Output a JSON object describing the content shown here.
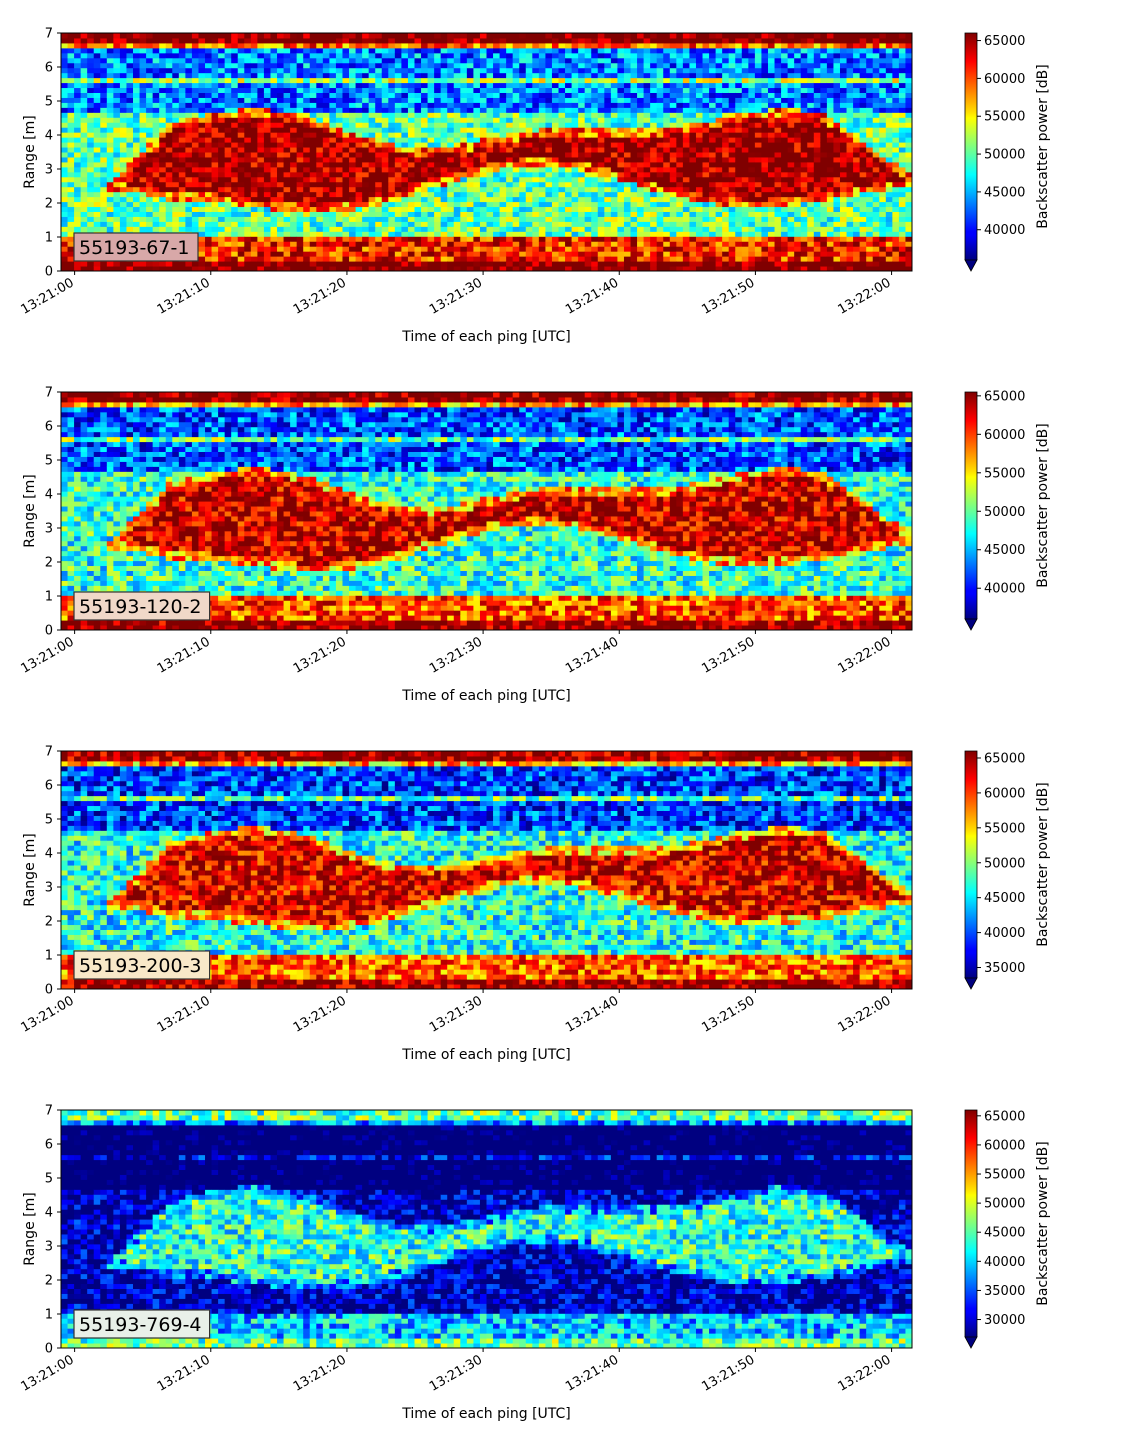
{
  "chart_data": [
    {
      "type": "heatmap",
      "label": "55193-67-1",
      "xlabel": "Time of each ping [UTC]",
      "ylabel": "Range [m]",
      "colorbar_label": "Backscatter power [dB]",
      "x_ticks": [
        "13:21:00",
        "13:21:10",
        "13:21:20",
        "13:21:30",
        "13:21:40",
        "13:21:50",
        "13:22:00"
      ],
      "x_range_seconds": [
        -1,
        61.5
      ],
      "y_ticks": [
        0,
        1,
        2,
        3,
        4,
        5,
        6,
        7
      ],
      "ylim": [
        0,
        7
      ],
      "colorbar_range": [
        36000,
        66000
      ],
      "colorbar_ticks": [
        40000,
        45000,
        50000,
        55000,
        60000,
        65000
      ],
      "label_box_color": "#d8a8a8"
    },
    {
      "type": "heatmap",
      "label": "55193-120-2",
      "xlabel": "Time of each ping [UTC]",
      "ylabel": "Range [m]",
      "colorbar_label": "Backscatter power [dB]",
      "x_ticks": [
        "13:21:00",
        "13:21:10",
        "13:21:20",
        "13:21:30",
        "13:21:40",
        "13:21:50",
        "13:22:00"
      ],
      "x_range_seconds": [
        -1,
        61.5
      ],
      "y_ticks": [
        0,
        1,
        2,
        3,
        4,
        5,
        6,
        7
      ],
      "ylim": [
        0,
        7
      ],
      "colorbar_range": [
        36000,
        65500
      ],
      "colorbar_ticks": [
        40000,
        45000,
        50000,
        55000,
        60000,
        65000
      ],
      "label_box_color": "#f0d8c8"
    },
    {
      "type": "heatmap",
      "label": "55193-200-3",
      "xlabel": "Time of each ping [UTC]",
      "ylabel": "Range [m]",
      "colorbar_label": "Backscatter power [dB]",
      "x_ticks": [
        "13:21:00",
        "13:21:10",
        "13:21:20",
        "13:21:30",
        "13:21:40",
        "13:21:50",
        "13:22:00"
      ],
      "x_range_seconds": [
        -1,
        61.5
      ],
      "y_ticks": [
        0,
        1,
        2,
        3,
        4,
        5,
        6,
        7
      ],
      "ylim": [
        0,
        7
      ],
      "colorbar_range": [
        33500,
        66000
      ],
      "colorbar_ticks": [
        35000,
        40000,
        45000,
        50000,
        55000,
        60000,
        65000
      ],
      "label_box_color": "#f8e8c8"
    },
    {
      "type": "heatmap",
      "label": "55193-769-4",
      "xlabel": "Time of each ping [UTC]",
      "ylabel": "Range [m]",
      "colorbar_label": "Backscatter power [dB]",
      "x_ticks": [
        "13:21:00",
        "13:21:10",
        "13:21:20",
        "13:21:30",
        "13:21:40",
        "13:21:50",
        "13:22:00"
      ],
      "x_range_seconds": [
        -1,
        61.5
      ],
      "y_ticks": [
        0,
        1,
        2,
        3,
        4,
        5,
        6,
        7
      ],
      "ylim": [
        0,
        7
      ],
      "colorbar_range": [
        27000,
        66000
      ],
      "colorbar_ticks": [
        30000,
        35000,
        40000,
        45000,
        50000,
        55000,
        60000,
        65000
      ],
      "label_box_color": "#e8f0e8"
    }
  ]
}
